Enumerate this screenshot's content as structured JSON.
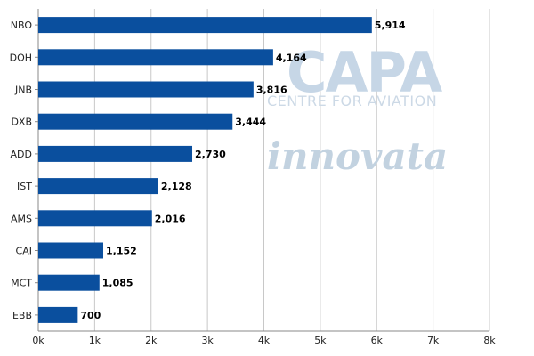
{
  "chart_data": {
    "type": "bar",
    "orientation": "horizontal",
    "categories": [
      "NBO",
      "DOH",
      "JNB",
      "DXB",
      "ADD",
      "IST",
      "AMS",
      "CAI",
      "MCT",
      "EBB"
    ],
    "values": [
      5914,
      4164,
      3816,
      3444,
      2730,
      2128,
      2016,
      1152,
      1085,
      700
    ],
    "data_labels": [
      "5,914",
      "4,164",
      "3,816",
      "3,444",
      "2,730",
      "2,128",
      "2,016",
      "1,152",
      "1,085",
      "700"
    ],
    "xlim": [
      0,
      8000
    ],
    "x_ticks": [
      0,
      1000,
      2000,
      3000,
      4000,
      5000,
      6000,
      7000,
      8000
    ],
    "x_tick_labels": [
      "0k",
      "1k",
      "2k",
      "3k",
      "4k",
      "5k",
      "6k",
      "7k",
      "8k"
    ],
    "grid": "vertical",
    "bar_color": "#0a4f9e",
    "grid_color": "#c8c8c8",
    "title": "",
    "xlabel": "",
    "ylabel": ""
  },
  "watermark": {
    "brand": "CAPA",
    "subtitle": "CENTRE FOR AVIATION",
    "provider": "innovata"
  }
}
